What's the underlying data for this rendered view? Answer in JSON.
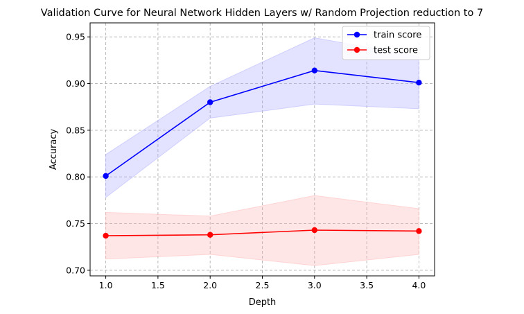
{
  "chart_data": {
    "type": "line",
    "title": "Validation Curve for Neural Network Hidden Layers w/ Random Projection reduction to 7",
    "xlabel": "Depth",
    "ylabel": "Accuracy",
    "xlim": [
      0.85,
      4.15
    ],
    "ylim": [
      0.694,
      0.965
    ],
    "xticks": [
      1.0,
      1.5,
      2.0,
      2.5,
      3.0,
      3.5,
      4.0
    ],
    "xtick_labels": [
      "1.0",
      "1.5",
      "2.0",
      "2.5",
      "3.0",
      "3.5",
      "4.0"
    ],
    "yticks": [
      0.7,
      0.75,
      0.8,
      0.85,
      0.9,
      0.95
    ],
    "ytick_labels": [
      "0.70",
      "0.75",
      "0.80",
      "0.85",
      "0.90",
      "0.95"
    ],
    "grid": true,
    "legend_position": "top-right",
    "x": [
      1,
      2,
      3,
      4
    ],
    "series": [
      {
        "name": "train score",
        "color": "#0000ff",
        "fill_color": "#b0b0ff",
        "values": [
          0.801,
          0.88,
          0.914,
          0.901
        ],
        "upper": [
          0.824,
          0.897,
          0.949,
          0.929
        ],
        "lower": [
          0.778,
          0.863,
          0.878,
          0.873
        ]
      },
      {
        "name": "test score",
        "color": "#ff0000",
        "fill_color": "#ffb8b8",
        "values": [
          0.737,
          0.738,
          0.743,
          0.742
        ],
        "upper": [
          0.762,
          0.758,
          0.78,
          0.766
        ],
        "lower": [
          0.712,
          0.717,
          0.705,
          0.717
        ]
      }
    ]
  }
}
